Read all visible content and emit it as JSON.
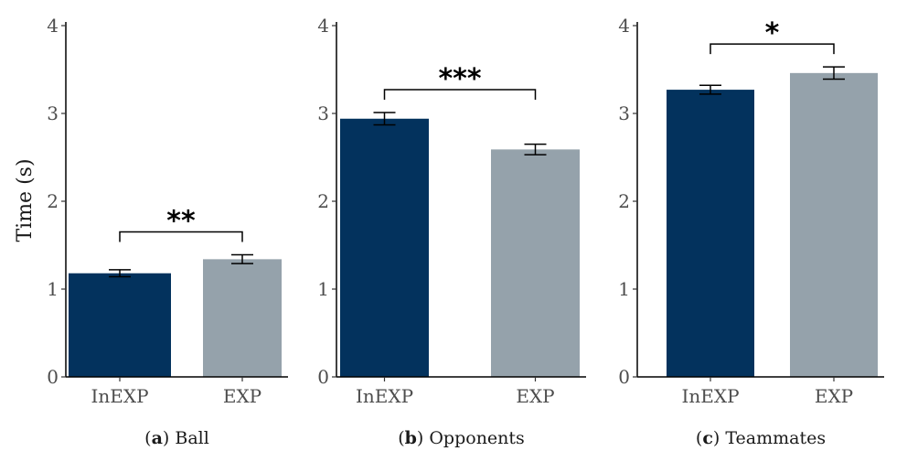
{
  "y_axis_label": "Time (s)",
  "colors": {
    "inexp": "#03325d",
    "exp": "#95a2ab"
  },
  "chart_data": [
    {
      "type": "bar",
      "categories": [
        "InEXP",
        "EXP"
      ],
      "values": [
        1.18,
        1.34
      ],
      "errors": [
        0.04,
        0.05
      ],
      "ylim": [
        0,
        4
      ],
      "yticks": [
        "0",
        "1",
        "2",
        "3",
        "4"
      ],
      "significance": "**",
      "caption_letter": "a",
      "caption_text": "Ball",
      "grid": false
    },
    {
      "type": "bar",
      "categories": [
        "InEXP",
        "EXP"
      ],
      "values": [
        2.94,
        2.59
      ],
      "errors": [
        0.07,
        0.06
      ],
      "ylim": [
        0,
        4
      ],
      "yticks": [
        "0",
        "1",
        "2",
        "3",
        "4"
      ],
      "significance": "***",
      "caption_letter": "b",
      "caption_text": "Opponents",
      "grid": false
    },
    {
      "type": "bar",
      "categories": [
        "InEXP",
        "EXP"
      ],
      "values": [
        3.27,
        3.46
      ],
      "errors": [
        0.05,
        0.07
      ],
      "ylim": [
        0,
        4
      ],
      "yticks": [
        "0",
        "1",
        "2",
        "3",
        "4"
      ],
      "significance": "*",
      "caption_letter": "c",
      "caption_text": "Teammates",
      "grid": false
    }
  ]
}
